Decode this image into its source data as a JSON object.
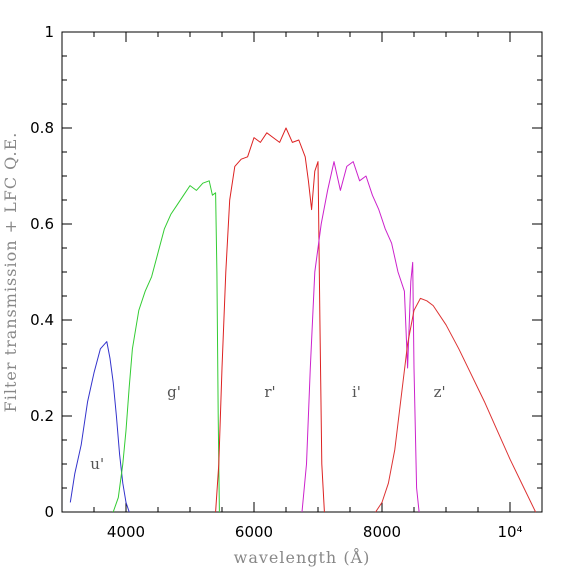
{
  "chart_data": {
    "type": "line",
    "xlabel": "wavelength (Å)",
    "ylabel": "Filter transmission + LFC Q.E.",
    "xlim": [
      3000,
      10500
    ],
    "ylim": [
      0,
      1
    ],
    "x_ticks": [
      {
        "value": 4000,
        "label": "4000"
      },
      {
        "value": 6000,
        "label": "6000"
      },
      {
        "value": 8000,
        "label": "8000"
      },
      {
        "value": 10000,
        "label": "10⁴"
      }
    ],
    "y_ticks": [
      {
        "value": 0,
        "label": "0"
      },
      {
        "value": 0.2,
        "label": "0.2"
      },
      {
        "value": 0.4,
        "label": "0.4"
      },
      {
        "value": 0.6,
        "label": "0.6"
      },
      {
        "value": 0.8,
        "label": "0.8"
      },
      {
        "value": 1,
        "label": "1"
      }
    ],
    "grid": false,
    "series": [
      {
        "name": "u'",
        "color": "#3333cc",
        "points": [
          [
            3130,
            0.02
          ],
          [
            3200,
            0.08
          ],
          [
            3300,
            0.14
          ],
          [
            3400,
            0.23
          ],
          [
            3500,
            0.29
          ],
          [
            3600,
            0.34
          ],
          [
            3700,
            0.355
          ],
          [
            3750,
            0.32
          ],
          [
            3800,
            0.27
          ],
          [
            3850,
            0.2
          ],
          [
            3900,
            0.12
          ],
          [
            3950,
            0.06
          ],
          [
            4000,
            0.02
          ],
          [
            4050,
            0.0
          ]
        ]
      },
      {
        "name": "g'",
        "color": "#33cc33",
        "points": [
          [
            3800,
            0.0
          ],
          [
            3880,
            0.03
          ],
          [
            3950,
            0.1
          ],
          [
            4000,
            0.17
          ],
          [
            4050,
            0.26
          ],
          [
            4100,
            0.34
          ],
          [
            4150,
            0.38
          ],
          [
            4200,
            0.42
          ],
          [
            4300,
            0.46
          ],
          [
            4400,
            0.49
          ],
          [
            4500,
            0.54
          ],
          [
            4600,
            0.59
          ],
          [
            4700,
            0.62
          ],
          [
            4800,
            0.64
          ],
          [
            4900,
            0.66
          ],
          [
            5000,
            0.68
          ],
          [
            5100,
            0.67
          ],
          [
            5200,
            0.685
          ],
          [
            5300,
            0.69
          ],
          [
            5350,
            0.66
          ],
          [
            5400,
            0.665
          ],
          [
            5420,
            0.5
          ],
          [
            5440,
            0.2
          ],
          [
            5460,
            0.0
          ]
        ]
      },
      {
        "name": "r'",
        "color": "#dd2222",
        "points": [
          [
            5400,
            0.0
          ],
          [
            5450,
            0.1
          ],
          [
            5500,
            0.3
          ],
          [
            5560,
            0.5
          ],
          [
            5620,
            0.65
          ],
          [
            5700,
            0.72
          ],
          [
            5800,
            0.735
          ],
          [
            5900,
            0.74
          ],
          [
            6000,
            0.78
          ],
          [
            6100,
            0.77
          ],
          [
            6200,
            0.79
          ],
          [
            6300,
            0.78
          ],
          [
            6400,
            0.77
          ],
          [
            6500,
            0.8
          ],
          [
            6600,
            0.77
          ],
          [
            6700,
            0.775
          ],
          [
            6800,
            0.74
          ],
          [
            6850,
            0.69
          ],
          [
            6900,
            0.63
          ],
          [
            6950,
            0.71
          ],
          [
            7000,
            0.73
          ],
          [
            7030,
            0.4
          ],
          [
            7060,
            0.1
          ],
          [
            7100,
            0.0
          ]
        ]
      },
      {
        "name": "i'",
        "color": "#cc22cc",
        "points": [
          [
            6750,
            0.0
          ],
          [
            6820,
            0.1
          ],
          [
            6880,
            0.3
          ],
          [
            6950,
            0.5
          ],
          [
            7050,
            0.6
          ],
          [
            7150,
            0.67
          ],
          [
            7250,
            0.73
          ],
          [
            7350,
            0.67
          ],
          [
            7450,
            0.72
          ],
          [
            7550,
            0.73
          ],
          [
            7650,
            0.69
          ],
          [
            7750,
            0.7
          ],
          [
            7850,
            0.66
          ],
          [
            7950,
            0.63
          ],
          [
            8050,
            0.59
          ],
          [
            8150,
            0.56
          ],
          [
            8250,
            0.5
          ],
          [
            8350,
            0.46
          ],
          [
            8400,
            0.3
          ],
          [
            8450,
            0.48
          ],
          [
            8480,
            0.52
          ],
          [
            8500,
            0.3
          ],
          [
            8540,
            0.05
          ],
          [
            8580,
            0.0
          ]
        ]
      },
      {
        "name": "z'",
        "color": "#dd3333",
        "points": [
          [
            7900,
            0.0
          ],
          [
            8000,
            0.02
          ],
          [
            8100,
            0.06
          ],
          [
            8200,
            0.13
          ],
          [
            8300,
            0.24
          ],
          [
            8400,
            0.35
          ],
          [
            8500,
            0.42
          ],
          [
            8600,
            0.445
          ],
          [
            8700,
            0.44
          ],
          [
            8800,
            0.43
          ],
          [
            9000,
            0.39
          ],
          [
            9200,
            0.34
          ],
          [
            9400,
            0.285
          ],
          [
            9600,
            0.23
          ],
          [
            9800,
            0.17
          ],
          [
            10000,
            0.11
          ],
          [
            10200,
            0.055
          ],
          [
            10400,
            0.0
          ]
        ]
      }
    ],
    "band_labels": [
      {
        "text": "u'",
        "x": 3550,
        "y": 0.1
      },
      {
        "text": "g'",
        "x": 4750,
        "y": 0.25
      },
      {
        "text": "r'",
        "x": 6250,
        "y": 0.25
      },
      {
        "text": "i'",
        "x": 7600,
        "y": 0.25
      },
      {
        "text": "z'",
        "x": 8900,
        "y": 0.25
      }
    ]
  }
}
